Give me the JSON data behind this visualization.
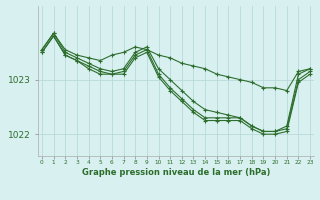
{
  "xlabel": "Graphe pression niveau de la mer (hPa)",
  "background_color": "#d8f0f0",
  "grid_color": "#b8dada",
  "line_color": "#2d6e2d",
  "marker_color": "#2d6e2d",
  "hours": [
    0,
    1,
    2,
    3,
    4,
    5,
    6,
    7,
    8,
    9,
    10,
    11,
    12,
    13,
    14,
    15,
    16,
    17,
    18,
    19,
    20,
    21,
    22,
    23
  ],
  "series1": [
    1023.55,
    1023.85,
    1023.55,
    1023.45,
    1023.4,
    1023.35,
    1023.45,
    1023.5,
    1023.6,
    1023.55,
    1023.45,
    1023.4,
    1023.3,
    1023.25,
    1023.2,
    1023.1,
    1023.05,
    1023.0,
    1022.95,
    1022.85,
    1022.85,
    1022.8,
    1023.15,
    1023.2
  ],
  "series2": [
    1023.55,
    1023.85,
    1023.5,
    1023.4,
    1023.3,
    1023.2,
    1023.15,
    1023.2,
    1023.5,
    1023.6,
    1023.2,
    1023.0,
    1022.8,
    1022.6,
    1022.45,
    1022.4,
    1022.35,
    1022.3,
    1022.15,
    1022.05,
    1022.05,
    1022.15,
    1023.1,
    1023.2
  ],
  "series3": [
    1023.5,
    1023.8,
    1023.45,
    1023.35,
    1023.25,
    1023.15,
    1023.1,
    1023.15,
    1023.45,
    1023.55,
    1023.1,
    1022.85,
    1022.65,
    1022.45,
    1022.3,
    1022.3,
    1022.3,
    1022.3,
    1022.15,
    1022.05,
    1022.05,
    1022.1,
    1023.0,
    1023.15
  ],
  "series4": [
    1023.5,
    1023.8,
    1023.45,
    1023.35,
    1023.2,
    1023.1,
    1023.1,
    1023.1,
    1023.4,
    1023.5,
    1023.05,
    1022.8,
    1022.6,
    1022.4,
    1022.25,
    1022.25,
    1022.25,
    1022.25,
    1022.1,
    1022.0,
    1022.0,
    1022.05,
    1022.95,
    1023.1
  ],
  "ylim": [
    1021.6,
    1024.35
  ],
  "yticks": [
    1022.0,
    1023.0
  ],
  "xlim": [
    -0.3,
    23.3
  ]
}
